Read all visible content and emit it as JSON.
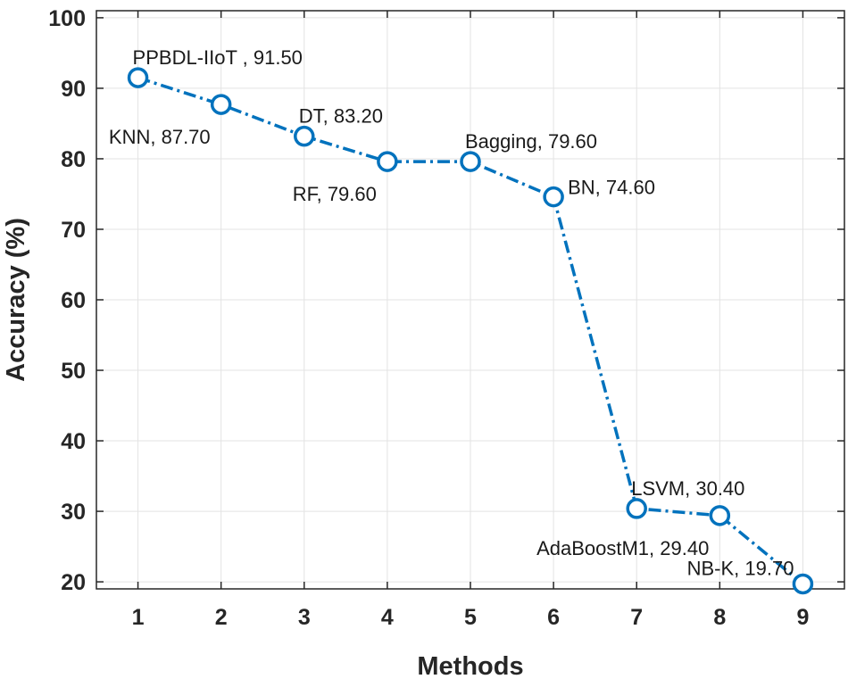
{
  "chart_data": {
    "type": "line",
    "title": "",
    "xlabel": "Methods",
    "ylabel": "Accuracy (%)",
    "x": [
      1,
      2,
      3,
      4,
      5,
      6,
      7,
      8,
      9
    ],
    "xlim": [
      0.5,
      9.5
    ],
    "ylim": [
      19,
      101
    ],
    "xticks": [
      "1",
      "2",
      "3",
      "4",
      "5",
      "6",
      "7",
      "8",
      "9"
    ],
    "yticks": [
      20,
      30,
      40,
      50,
      60,
      70,
      80,
      90,
      100
    ],
    "grid": true,
    "series": [
      {
        "name": "Accuracy",
        "color": "#0072BD",
        "marker": "circle",
        "line_style": "dash-dot",
        "values": [
          91.5,
          87.7,
          83.2,
          79.6,
          79.6,
          74.6,
          30.4,
          29.4,
          19.7
        ]
      }
    ],
    "annotations": [
      {
        "text": "PPBDL-IIoT , 91.50",
        "x": 1,
        "y": 91.5,
        "placement": "above-right"
      },
      {
        "text": "KNN, 87.70",
        "x": 2,
        "y": 87.7,
        "placement": "below-left"
      },
      {
        "text": "DT, 83.20",
        "x": 3,
        "y": 83.2,
        "placement": "above-right"
      },
      {
        "text": "RF, 79.60",
        "x": 4,
        "y": 79.6,
        "placement": "below-left"
      },
      {
        "text": "Bagging, 79.60",
        "x": 5,
        "y": 79.6,
        "placement": "above-right"
      },
      {
        "text": "BN, 74.60",
        "x": 6,
        "y": 74.6,
        "placement": "right"
      },
      {
        "text": "LSVM, 30.40",
        "x": 7,
        "y": 30.4,
        "placement": "above-right"
      },
      {
        "text": "AdaBoostM1, 29.40",
        "x": 8,
        "y": 29.4,
        "placement": "below-left"
      },
      {
        "text": "NB-K, 19.70",
        "x": 9,
        "y": 19.7,
        "placement": "above-left"
      }
    ]
  }
}
